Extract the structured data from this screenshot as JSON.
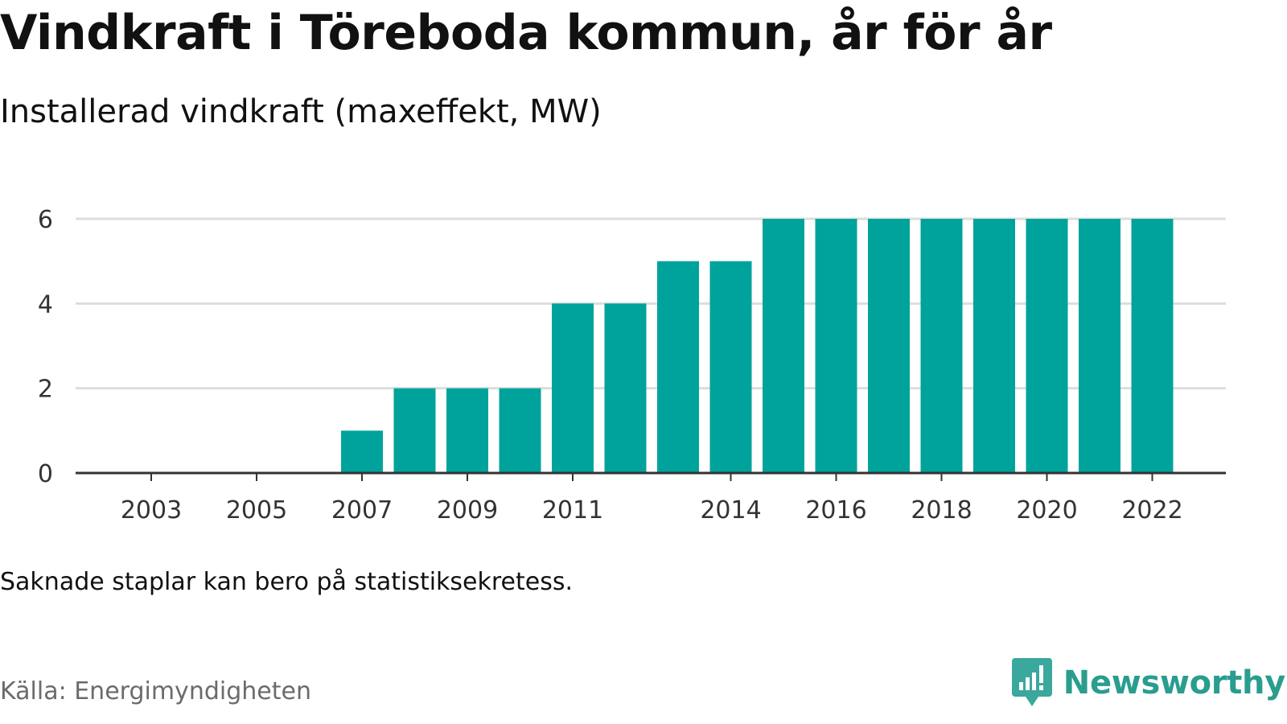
{
  "header": {
    "title": "Vindkraft i Töreboda kommun, år för år",
    "subtitle": "Installerad vindkraft (maxeffekt, MW)"
  },
  "footer": {
    "note": "Saknade staplar kan bero på statistiksekretess.",
    "source": "Källa: Energimyndigheten",
    "brand": "Newsworthy"
  },
  "colors": {
    "bar": "#00a39b",
    "grid": "#dddddd",
    "axis": "#333333",
    "brand": "#2a9d8f"
  },
  "chart_data": {
    "type": "bar",
    "categories": [
      "2003",
      "2004",
      "2005",
      "2006",
      "2007",
      "2008",
      "2009",
      "2010",
      "2011",
      "2012",
      "2013",
      "2014",
      "2015",
      "2016",
      "2017",
      "2018",
      "2019",
      "2020",
      "2021",
      "2022"
    ],
    "values": [
      0,
      0,
      0,
      0,
      1,
      2,
      2,
      2,
      4,
      4,
      5,
      5,
      6,
      6,
      6,
      6,
      6,
      6,
      6,
      6
    ],
    "x_tick_labels": [
      "2003",
      "2005",
      "2007",
      "2009",
      "2011",
      "2014",
      "2016",
      "2018",
      "2020",
      "2022"
    ],
    "y_ticks": [
      0,
      2,
      4,
      6
    ],
    "ylim": [
      0,
      6
    ],
    "grid": true,
    "legend": "none"
  }
}
